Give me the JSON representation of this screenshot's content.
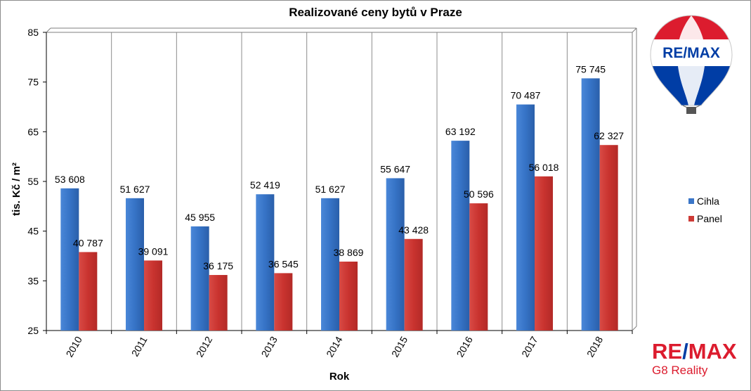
{
  "chart_data": {
    "type": "bar",
    "title": "Realizované ceny bytů v Praze",
    "xlabel": "Rok",
    "ylabel": "tis. Kč / m²",
    "categories": [
      "2010",
      "2011",
      "2012",
      "2013",
      "2014",
      "2015",
      "2016",
      "2017",
      "2018"
    ],
    "series": [
      {
        "name": "Cihla",
        "color": "#3a76c8",
        "values": [
          53.608,
          51.627,
          45.955,
          52.419,
          51.627,
          55.647,
          63.192,
          70.487,
          75.745
        ],
        "labels": [
          "53 608",
          "51 627",
          "45 955",
          "52 419",
          "51 627",
          "55 647",
          "63 192",
          "70 487",
          "75 745"
        ]
      },
      {
        "name": "Panel",
        "color": "#cd3a36",
        "values": [
          40.787,
          39.091,
          36.175,
          36.545,
          38.869,
          43.428,
          50.596,
          56.018,
          62.327
        ],
        "labels": [
          "40 787",
          "39 091",
          "36 175",
          "36 545",
          "38 869",
          "43 428",
          "50 596",
          "56 018",
          "62 327"
        ]
      }
    ],
    "ylim": [
      25,
      85
    ],
    "yticks": [
      25,
      35,
      45,
      55,
      65,
      75,
      85
    ],
    "ytick_labels": [
      "25",
      "35",
      "45",
      "55",
      "65",
      "75",
      "85"
    ],
    "grid": "vertical",
    "legend_position": "right"
  },
  "branding": {
    "balloon_logo_text": "RE/MAX",
    "logo_part1": "RE",
    "logo_slash": "/",
    "logo_part2": "MAX",
    "company": "G8 Reality"
  }
}
